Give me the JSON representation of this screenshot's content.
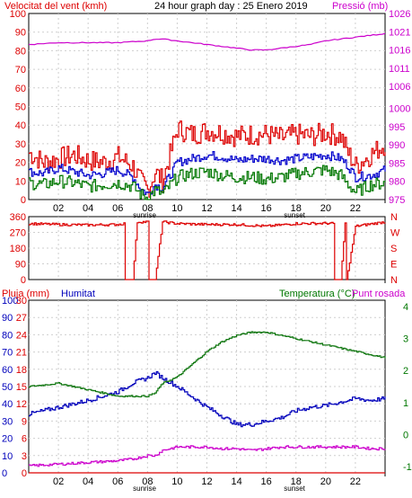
{
  "header": {
    "left_title": "Velocitat del vent (kmh)",
    "center_title": "24 hour graph day : 25 Enero 2019",
    "right_title": "Pressió (mb)"
  },
  "panel3_header": {
    "rain_label": "Pluja (mm)",
    "humidity_label": "Humitat",
    "temp_label": "Temperatura (°C)",
    "dew_label": "Punt rosada"
  },
  "x_axis": {
    "ticks": [
      "02",
      "04",
      "06",
      "08",
      "10",
      "12",
      "14",
      "16",
      "18",
      "20",
      "22"
    ],
    "sunrise_label": "sunrise",
    "sunset_label": "sunset"
  },
  "colors": {
    "wind_speed": "#dd0000",
    "wind_avg": "#0000cc",
    "wind_min": "#007700",
    "pressure": "#cc00cc",
    "direction": "#dd0000",
    "humidity": "#0000bb",
    "temperature": "#117711",
    "dewpoint": "#cc00cc",
    "rain": "#dd0000",
    "grid": "#cfcfcf",
    "wind_axis": "#dd0000",
    "pressure_axis": "#cc00cc",
    "rain_axis": "#dd0000",
    "humidity_axis": "#0000bb",
    "temp_axis": "#007700"
  },
  "chart_data": [
    {
      "type": "line",
      "title": "Velocitat del vent (kmh)",
      "x": [
        0,
        1,
        2,
        3,
        4,
        5,
        6,
        7,
        7.5,
        8,
        8.5,
        9,
        10,
        11,
        12,
        13,
        14,
        15,
        16,
        17,
        18,
        19,
        20,
        21,
        21.5,
        22,
        23,
        24
      ],
      "series": [
        {
          "values": [
            25,
            20,
            22,
            24,
            21,
            20,
            23,
            18,
            10,
            5,
            15,
            10,
            38,
            35,
            37,
            36,
            34,
            35,
            35,
            33,
            35,
            34,
            36,
            34,
            25,
            18,
            24,
            30
          ]
        },
        {
          "values": [
            15,
            14,
            17,
            15,
            13,
            14,
            16,
            12,
            6,
            3,
            8,
            6,
            20,
            22,
            24,
            23,
            21,
            22,
            22,
            21,
            22,
            23,
            24,
            22,
            18,
            12,
            13,
            16
          ]
        },
        {
          "values": [
            9,
            8,
            10,
            9,
            7,
            8,
            9,
            7,
            3,
            1,
            5,
            3,
            12,
            14,
            15,
            13,
            12,
            12,
            11,
            12,
            14,
            15,
            16,
            13,
            8,
            4,
            8,
            9
          ]
        }
      ],
      "ylim": [
        0,
        100
      ],
      "y_ticks": [
        0,
        10,
        20,
        30,
        40,
        50,
        60,
        70,
        80,
        90,
        100
      ]
    },
    {
      "type": "line",
      "title": "Pressió (mb)",
      "x": [
        0,
        2,
        4,
        6,
        8,
        8.5,
        9,
        10,
        11,
        12,
        13,
        14,
        15,
        16,
        17,
        18,
        19,
        20,
        21,
        22,
        23,
        24
      ],
      "series": [
        {
          "values": [
            1017.5,
            1018,
            1018,
            1018,
            1018.5,
            1019,
            1019,
            1018.5,
            1018,
            1017.5,
            1017,
            1016.5,
            1016,
            1016,
            1016.5,
            1017,
            1017.5,
            1018.5,
            1019,
            1019.5,
            1020,
            1020.5
          ]
        }
      ],
      "ylim": [
        975,
        1026
      ],
      "y_ticks": [
        975,
        980,
        985,
        990,
        995,
        1000,
        1006,
        1011,
        1016,
        1021,
        1026
      ]
    },
    {
      "type": "line",
      "title": "",
      "x": [
        0,
        2,
        4,
        6,
        6.4,
        6.5,
        7,
        7.3,
        7.4,
        8,
        8.1,
        8.5,
        9,
        9.5,
        10,
        12,
        14,
        16,
        18,
        20,
        20.5,
        20.6,
        21,
        21.3,
        21.4,
        22,
        24
      ],
      "series": [
        {
          "values": [
            320,
            315,
            312,
            315,
            320,
            0,
            0,
            330,
            330,
            330,
            0,
            0,
            330,
            325,
            320,
            315,
            315,
            305,
            320,
            322,
            320,
            0,
            0,
            320,
            0,
            305,
            330
          ]
        }
      ],
      "ylim": [
        0,
        360
      ],
      "y_ticks": [
        0,
        90,
        180,
        270,
        360
      ],
      "y_tick_labels": [
        "N",
        "E",
        "S",
        "W",
        "N"
      ]
    },
    {
      "type": "line",
      "title": "",
      "x": [
        0,
        2,
        4,
        6,
        7,
        8,
        8.5,
        9,
        10,
        11,
        12,
        13,
        14,
        15,
        16,
        17,
        18,
        19,
        20,
        21,
        22,
        23,
        24
      ],
      "series": [
        {
          "name": "Humitat",
          "values": [
            34,
            38,
            42,
            47,
            52,
            55,
            58,
            55,
            50,
            44,
            38,
            33,
            28,
            28,
            30,
            32,
            36,
            38,
            39,
            41,
            43,
            42,
            43
          ]
        },
        {
          "name": "Temperatura (°C)",
          "values": [
            1.5,
            1.6,
            1.4,
            1.2,
            1.2,
            1.2,
            1.3,
            1.6,
            1.8,
            2.2,
            2.6,
            2.9,
            3.1,
            3.2,
            3.2,
            3.1,
            3.0,
            2.9,
            2.8,
            2.7,
            2.6,
            2.5,
            2.4
          ]
        },
        {
          "name": "Punt rosada",
          "values": [
            4,
            5,
            6,
            7,
            8,
            10,
            10,
            13,
            15,
            15,
            15,
            14,
            14,
            13,
            14,
            15,
            15,
            15,
            15,
            15,
            15,
            14,
            14
          ]
        },
        {
          "name": "Pluja (mm)",
          "values": [
            0,
            0,
            0,
            0,
            0,
            0,
            0,
            0,
            0,
            0,
            0,
            0,
            0,
            0,
            0,
            0,
            0,
            0,
            0,
            0,
            0,
            0,
            0
          ]
        }
      ],
      "axes": {
        "humidity_ticks": [
          0,
          10,
          20,
          30,
          40,
          50,
          60,
          70,
          80,
          90,
          100
        ],
        "rain_ticks": [
          0,
          3,
          6,
          9,
          12,
          15,
          18,
          21,
          24,
          27,
          30
        ],
        "temp_ticks": [
          -1,
          0,
          1,
          2,
          3,
          4
        ]
      }
    }
  ]
}
